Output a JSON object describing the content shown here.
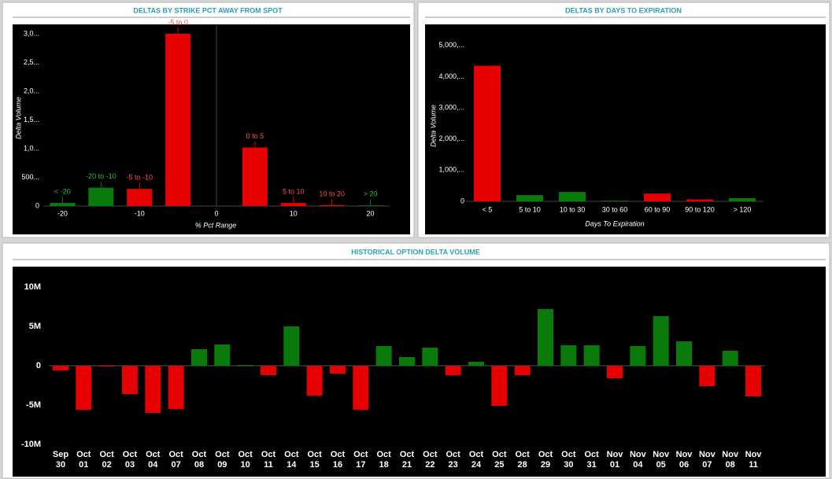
{
  "chart_data": [
    {
      "type": "bar",
      "title": "DELTAS BY STRIKE PCT AWAY FROM SPOT",
      "x_label": "% Pct Range",
      "y_label": "Delta Volume",
      "categories": [
        "< -20",
        "-20 to -10",
        "-5 to -10",
        "-5 to 0",
        "0 to 5",
        "5 to 10",
        "10 to 20",
        "> 20"
      ],
      "x": [
        -20,
        -15,
        -10,
        -5,
        5,
        10,
        15,
        20
      ],
      "values": [
        55,
        320,
        300,
        3000,
        1020,
        55,
        15,
        10
      ],
      "colors": [
        "#0a7a0a",
        "#0a7a0a",
        "#e60000",
        "#e60000",
        "#e60000",
        "#e60000",
        "#e60000",
        "#0a7a0a"
      ],
      "xlim": [
        -22.5,
        22.5
      ],
      "xticks": [
        -20,
        -10,
        0,
        10,
        20
      ],
      "ylim": [
        0,
        3150
      ],
      "yticks": [
        0,
        {
          "value": 500,
          "label": "500..."
        },
        {
          "value": 1000,
          "label": "1,0..."
        },
        {
          "value": 1500,
          "label": "1,5..."
        },
        {
          "value": 2000,
          "label": "2,0..."
        },
        {
          "value": 2500,
          "label": "2,5..."
        },
        {
          "value": 3000,
          "label": "3,0..."
        }
      ],
      "grid": false
    },
    {
      "type": "bar",
      "title": "DELTAS BY DAYS TO EXPIRATION",
      "x_label": "Days To Expiration",
      "y_label": "Delta Volume",
      "categories": [
        "< 5",
        "5 to 10",
        "10 to 30",
        "30 to 60",
        "60 to 90",
        "90 to 120",
        "> 120"
      ],
      "values": [
        4350,
        200,
        300,
        20,
        250,
        60,
        100
      ],
      "colors": [
        "#e60000",
        "#0a7a0a",
        "#0a7a0a",
        "#0a7a0a",
        "#e60000",
        "#e60000",
        "#0a7a0a"
      ],
      "ylim": [
        0,
        5600
      ],
      "yticks": [
        0,
        {
          "value": 1000,
          "label": "1,000,..."
        },
        {
          "value": 2000,
          "label": "2,000,..."
        },
        {
          "value": 3000,
          "label": "3,000,..."
        },
        {
          "value": 4000,
          "label": "4,000,..."
        },
        {
          "value": 5000,
          "label": "5,000,..."
        }
      ],
      "grid": false
    },
    {
      "type": "bar",
      "title": "HISTORICAL OPTION DELTA VOLUME",
      "categories": [
        "Sep 30",
        "Oct 01",
        "Oct 02",
        "Oct 03",
        "Oct 04",
        "Oct 07",
        "Oct 08",
        "Oct 09",
        "Oct 10",
        "Oct 11",
        "Oct 14",
        "Oct 15",
        "Oct 16",
        "Oct 17",
        "Oct 18",
        "Oct 21",
        "Oct 22",
        "Oct 23",
        "Oct 24",
        "Oct 25",
        "Oct 28",
        "Oct 29",
        "Oct 30",
        "Oct 31",
        "Nov 01",
        "Nov 04",
        "Nov 05",
        "Nov 06",
        "Nov 07",
        "Nov 08",
        "Nov 11"
      ],
      "values": [
        -0.6,
        -5.6,
        -0.1,
        -3.6,
        -6.0,
        -5.5,
        2.1,
        2.7,
        0.1,
        -1.2,
        5.0,
        -3.8,
        -1.0,
        -5.6,
        2.5,
        1.1,
        2.3,
        -1.2,
        0.5,
        -5.1,
        -1.2,
        7.2,
        2.6,
        2.6,
        -1.6,
        2.5,
        6.3,
        3.1,
        -2.6,
        1.9,
        -3.9
      ],
      "positive_color": "#0a7a0a",
      "negative_color": "#e60000",
      "ylim": [
        -14,
        12.5
      ],
      "yticks": [
        {
          "value": -10,
          "label": "-10M"
        },
        {
          "value": -5,
          "label": "-5M"
        },
        0,
        {
          "value": 5,
          "label": "5M"
        },
        {
          "value": 10,
          "label": "10M"
        }
      ],
      "grid": false
    }
  ]
}
